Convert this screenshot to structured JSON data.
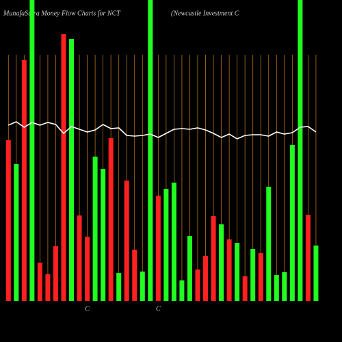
{
  "chart_data": {
    "type": "bar",
    "title": "MunafaSutra  Money Flow  Charts for NCT",
    "subtitle": "(Newcastle   Investment  C",
    "ylim": [
      0,
      440
    ],
    "values": [
      235,
      200,
      352,
      440,
      56,
      39,
      80,
      390,
      383,
      125,
      94,
      211,
      193,
      238,
      41,
      176,
      75,
      43,
      440,
      154,
      164,
      173,
      30,
      95,
      46,
      66,
      124,
      112,
      90,
      85,
      36,
      76,
      70,
      167,
      38,
      42,
      228,
      440,
      126,
      81
    ],
    "colors": [
      "#ff2020",
      "#20ff20",
      "#ff2020",
      "#20ff20",
      "#ff2020",
      "#ff2020",
      "#ff2020",
      "#ff2020",
      "#20ff20",
      "#ff2020",
      "#ff2020",
      "#20ff20",
      "#20ff20",
      "#ff2020",
      "#20ff20",
      "#ff2020",
      "#ff2020",
      "#20ff20",
      "#20ff20",
      "#ff2020",
      "#20ff20",
      "#20ff20",
      "#20ff20",
      "#20ff20",
      "#ff2020",
      "#ff2020",
      "#ff2020",
      "#20ff20",
      "#ff2020",
      "#20ff20",
      "#ff2020",
      "#20ff20",
      "#ff2020",
      "#20ff20",
      "#20ff20",
      "#20ff20",
      "#20ff20",
      "#20ff20",
      "#ff2020",
      "#20ff20"
    ],
    "line": [
      257,
      262,
      254,
      261,
      257,
      261,
      258,
      245,
      255,
      251,
      247,
      250,
      258,
      252,
      253,
      242,
      241,
      242,
      244,
      239,
      245,
      251,
      252,
      251,
      253,
      250,
      245,
      239,
      244,
      237,
      242,
      243,
      243,
      241,
      247,
      244,
      246,
      254,
      255,
      247
    ],
    "line_color": "#ffffff",
    "grid_color": "#b8741a",
    "annotations": [
      {
        "index": 10,
        "text": "C"
      },
      {
        "index": 19,
        "text": "C"
      }
    ]
  }
}
